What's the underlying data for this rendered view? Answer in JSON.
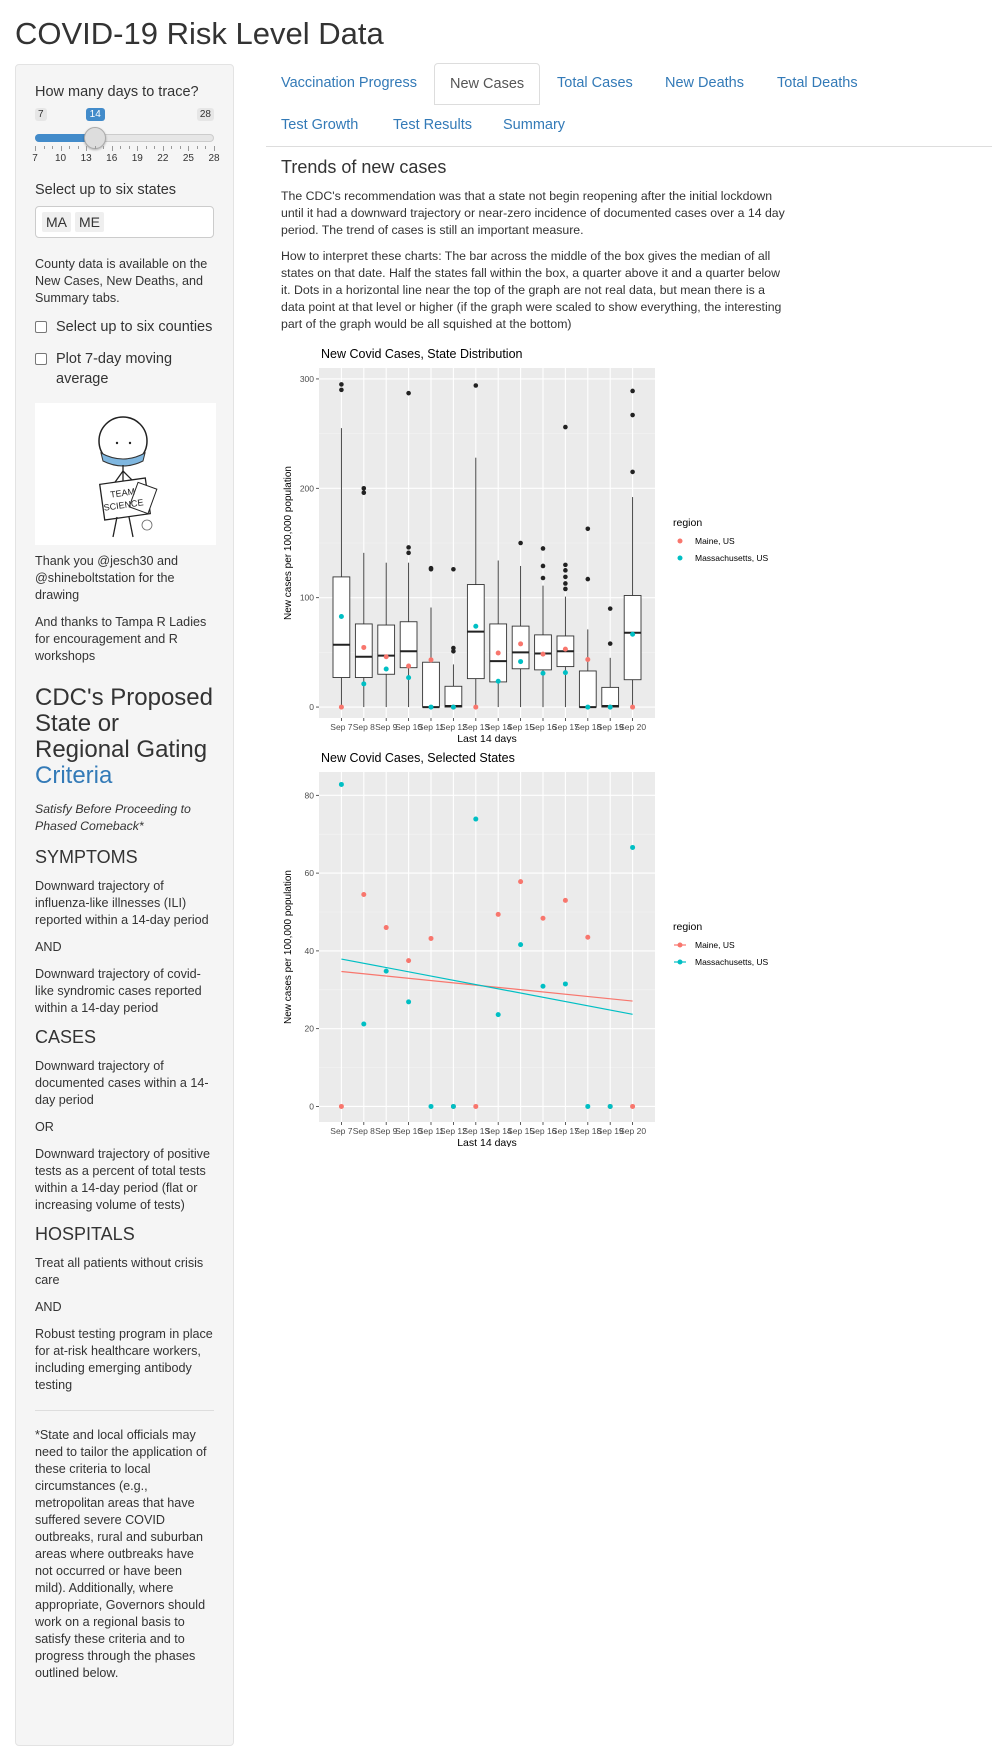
{
  "app": {
    "title": "COVID-19 Risk Level Data"
  },
  "sidebar": {
    "days_label": "How many days to trace?",
    "slider": {
      "min": "7",
      "max": "28",
      "value": "14",
      "value_num": 14,
      "min_num": 7,
      "max_num": 28,
      "ticks": [
        "7",
        "10",
        "13",
        "16",
        "19",
        "22",
        "25",
        "28"
      ]
    },
    "states_label": "Select up to six states",
    "states_selected": [
      "MA",
      "ME"
    ],
    "county_note": "County data is available on the New Cases, New Deaths, and Summary tabs.",
    "counties_checkbox": "Select up to six counties",
    "moving_avg_checkbox": "Plot 7-day moving average",
    "drawing": {
      "sign_line1": "TEAM",
      "sign_line2": "SCIENCE"
    },
    "thanks1": "Thank you @jesch30 and @shineboltstation for the drawing",
    "thanks2": "And thanks to Tampa R Ladies for encouragement and R workshops",
    "cdc": {
      "title_plain": "CDC's Proposed State or Regional Gating",
      "title_link": "Criteria",
      "subtitle": "Satisfy Before Proceeding to Phased Comeback*",
      "sections": [
        {
          "heading": "SYMPTOMS",
          "items": [
            "Downward trajectory of influenza-like illnesses (ILI) reported within a 14-day period",
            "AND",
            "Downward trajectory of covid-like syndromic cases reported within a 14-day period"
          ]
        },
        {
          "heading": "CASES",
          "items": [
            "Downward trajectory of documented cases within a 14-day period",
            "OR",
            "Downward trajectory of positive tests as a percent of total tests within a 14-day period (flat or increasing volume of tests)"
          ]
        },
        {
          "heading": "HOSPITALS",
          "items": [
            "Treat all patients without crisis care",
            "AND",
            "Robust testing program in place for at-risk healthcare workers, including emerging antibody testing"
          ]
        }
      ],
      "footnote": "*State and local officials may need to tailor the application of these criteria to local circumstances (e.g., metropolitan areas that have suffered severe COVID outbreaks, rural and suburban areas where outbreaks have not occurred or have been mild). Additionally, where appropriate, Governors should work on a regional basis to satisfy these criteria and to progress through the phases outlined below."
    }
  },
  "tabs": [
    {
      "label": "Vaccination Progress",
      "active": false
    },
    {
      "label": "New Cases",
      "active": true
    },
    {
      "label": "Total Cases",
      "active": false
    },
    {
      "label": "New Deaths",
      "active": false
    },
    {
      "label": "Total Deaths",
      "active": false
    },
    {
      "label": "Test Growth",
      "active": false
    },
    {
      "label": "Test Results",
      "active": false
    },
    {
      "label": "Summary",
      "active": false
    }
  ],
  "main": {
    "heading": "Trends of new cases",
    "para1": "The CDC's recommendation was that a state not begin reopening after the initial lockdown until it had a downward trajectory or near-zero incidence of documented cases over a 14 day period. The trend of cases is still an important measure.",
    "para2": "How to interpret these charts: The bar across the middle of the box gives the median of all states on that date. Half the states fall within the box, a quarter above it and a quarter below it. Dots in a horizontal line near the top of the graph are not real data, but mean there is a data point at that level or higher (if the graph were scaled to show everything, the interesting part of the graph would be all squished at the bottom)"
  },
  "colors": {
    "maine": "#F8766D",
    "massachusetts": "#00BFC4",
    "panel": "#EBEBEB",
    "link": "#337ab7"
  },
  "chart_data": [
    {
      "type": "box",
      "title": "New Covid Cases, State Distribution",
      "xlabel": "Last 14 days",
      "ylabel": "New cases per 100,000 population",
      "ylim": [
        -10,
        310
      ],
      "yticks": [
        0,
        100,
        200,
        300
      ],
      "categories": [
        "Sep 7",
        "Sep 8",
        "Sep 9",
        "Sep 10",
        "Sep 11",
        "Sep 12",
        "Sep 13",
        "Sep 14",
        "Sep 15",
        "Sep 16",
        "Sep 17",
        "Sep 18",
        "Sep 19",
        "Sep 20"
      ],
      "boxes": [
        {
          "low": 0,
          "q1": 27,
          "median": 57,
          "q3": 119,
          "high": 255,
          "outliers": [
            290,
            295
          ]
        },
        {
          "low": 0,
          "q1": 27,
          "median": 46,
          "q3": 76,
          "high": 141,
          "outliers": [
            196,
            200
          ]
        },
        {
          "low": 0,
          "q1": 30,
          "median": 47,
          "q3": 75,
          "high": 132,
          "outliers": []
        },
        {
          "low": 0,
          "q1": 36,
          "median": 51,
          "q3": 78,
          "high": 132,
          "outliers": [
            141,
            146,
            287
          ]
        },
        {
          "low": 0,
          "q1": 0,
          "median": 0,
          "q3": 41,
          "high": 91,
          "outliers": [
            126,
            127
          ]
        },
        {
          "low": 0,
          "q1": 0,
          "median": 1,
          "q3": 19,
          "high": 39,
          "outliers": [
            51,
            54,
            126
          ]
        },
        {
          "low": 0,
          "q1": 26,
          "median": 69,
          "q3": 112,
          "high": 228,
          "outliers": [
            294
          ]
        },
        {
          "low": 0,
          "q1": 23,
          "median": 42,
          "q3": 76,
          "high": 134,
          "outliers": []
        },
        {
          "low": 0,
          "q1": 35,
          "median": 50,
          "q3": 74,
          "high": 129,
          "outliers": [
            150
          ]
        },
        {
          "low": 0,
          "q1": 34,
          "median": 49,
          "q3": 66,
          "high": 111,
          "outliers": [
            118,
            129,
            145
          ]
        },
        {
          "low": 0,
          "q1": 37,
          "median": 51,
          "q3": 65,
          "high": 101,
          "outliers": [
            108,
            113,
            119,
            125,
            130,
            256
          ]
        },
        {
          "low": 0,
          "q1": 0,
          "median": 0,
          "q3": 33,
          "high": 71,
          "outliers": [
            117,
            163
          ]
        },
        {
          "low": 0,
          "q1": 0,
          "median": 1,
          "q3": 18,
          "high": 45,
          "outliers": [
            58,
            90
          ]
        },
        {
          "low": 0,
          "q1": 25,
          "median": 68,
          "q3": 102,
          "high": 192,
          "outliers": [
            215,
            267,
            289
          ]
        }
      ],
      "legend": {
        "title": "region",
        "position": "right",
        "entries": [
          "Maine, US",
          "Massachusetts, US"
        ]
      },
      "series": [
        {
          "name": "Maine, US",
          "values": [
            0,
            54.5,
            46,
            37.5,
            43.2,
            0,
            0,
            49.4,
            57.8,
            48.4,
            53,
            43.5,
            0,
            0
          ]
        },
        {
          "name": "Massachusetts, US",
          "values": [
            82.8,
            21.2,
            34.8,
            26.9,
            0,
            0,
            73.9,
            23.6,
            41.6,
            30.9,
            31.5,
            0,
            0,
            66.6
          ]
        }
      ]
    },
    {
      "type": "scatter",
      "title": "New Covid Cases, Selected States",
      "xlabel": "Last 14 days",
      "ylabel": "New cases per 100,000 population",
      "ylim": [
        -4,
        86
      ],
      "yticks": [
        0,
        20,
        40,
        60,
        80
      ],
      "categories": [
        "Sep 7",
        "Sep 8",
        "Sep 9",
        "Sep 10",
        "Sep 11",
        "Sep 12",
        "Sep 13",
        "Sep 14",
        "Sep 15",
        "Sep 16",
        "Sep 17",
        "Sep 18",
        "Sep 19",
        "Sep 20"
      ],
      "legend": {
        "title": "region",
        "position": "right",
        "entries": [
          "Maine, US",
          "Massachusetts, US"
        ]
      },
      "series": [
        {
          "name": "Maine, US",
          "values": [
            0,
            54.5,
            46,
            37.5,
            43.2,
            0,
            0,
            49.4,
            57.8,
            48.4,
            53,
            43.5,
            0,
            0
          ],
          "trend": [
            34.7,
            27.1
          ]
        },
        {
          "name": "Massachusetts, US",
          "values": [
            82.8,
            21.2,
            34.8,
            26.9,
            0,
            0,
            73.9,
            23.6,
            41.6,
            30.9,
            31.5,
            0,
            0,
            66.6
          ],
          "trend": [
            37.9,
            23.7
          ]
        }
      ]
    }
  ]
}
